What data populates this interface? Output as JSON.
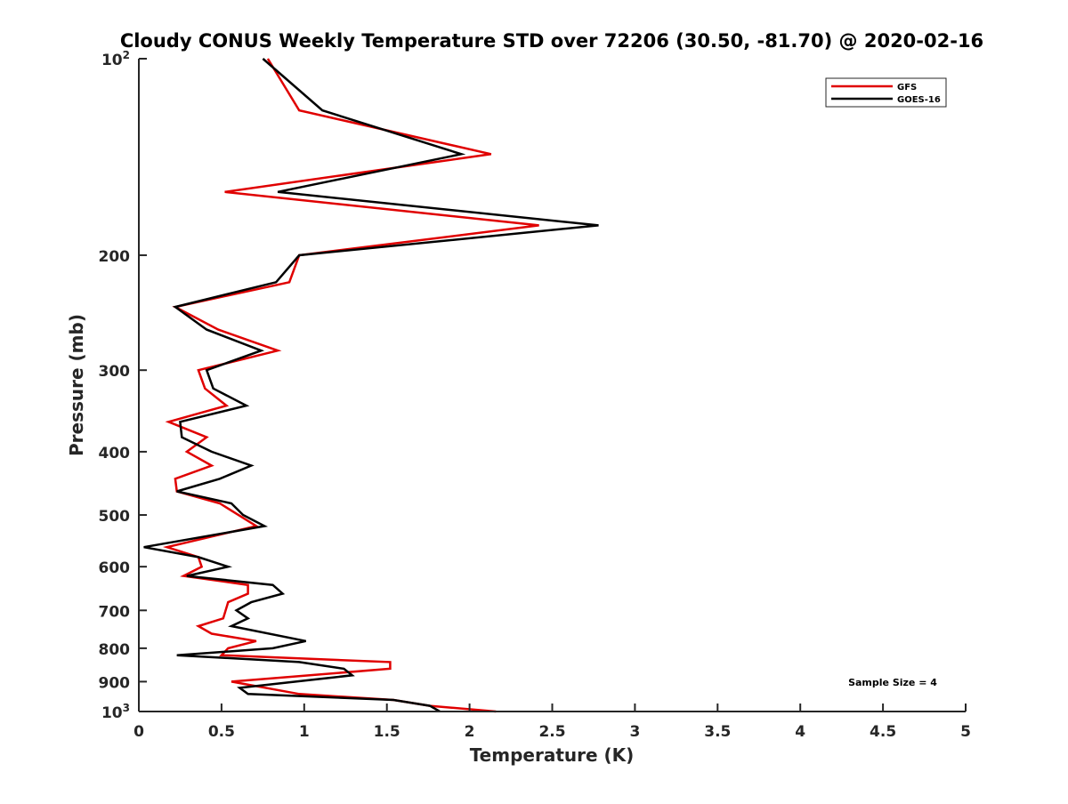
{
  "chart_data": {
    "type": "line",
    "title": "Cloudy CONUS Weekly Temperature STD over 72206 (30.50, -81.70) @ 2020-02-16",
    "xlabel": "Temperature (K)",
    "ylabel": "Pressure (mb)",
    "xlim": [
      0,
      5
    ],
    "ylim": [
      100,
      1000
    ],
    "yscale": "log",
    "yreversed": true,
    "grid": false,
    "legend_position": "top-right",
    "x_ticks": [
      0,
      0.5,
      1,
      1.5,
      2,
      2.5,
      3,
      3.5,
      4,
      4.5,
      5
    ],
    "x_tick_labels": [
      "0",
      "0.5",
      "1",
      "1.5",
      "2",
      "2.5",
      "3",
      "3.5",
      "4",
      "4.5",
      "5"
    ],
    "y_ticks": [
      100,
      200,
      300,
      400,
      500,
      600,
      700,
      800,
      900,
      1000
    ],
    "y_tick_labels": [
      {
        "base": "10",
        "exp": "2"
      },
      {
        "base": "200"
      },
      {
        "base": "300"
      },
      {
        "base": "400"
      },
      {
        "base": "500"
      },
      {
        "base": "600"
      },
      {
        "base": "700"
      },
      {
        "base": "800"
      },
      {
        "base": "900"
      },
      {
        "base": "10",
        "exp": "3"
      }
    ],
    "annotation": "Sample Size = 4",
    "series": [
      {
        "name": "GFS",
        "color": "#e00000",
        "pressure": [
          100,
          120,
          140,
          160,
          180,
          200,
          220,
          240,
          260,
          280,
          300,
          320,
          340,
          360,
          380,
          400,
          420,
          440,
          460,
          480,
          520,
          560,
          580,
          600,
          620,
          640,
          660,
          680,
          720,
          740,
          760,
          780,
          800,
          820,
          840,
          860,
          900,
          940,
          960,
          980,
          1000
        ],
        "temperature": [
          0.78,
          0.97,
          2.13,
          0.52,
          2.42,
          0.97,
          0.91,
          0.22,
          0.48,
          0.84,
          0.36,
          0.4,
          0.53,
          0.18,
          0.41,
          0.29,
          0.44,
          0.22,
          0.23,
          0.49,
          0.71,
          0.17,
          0.36,
          0.38,
          0.27,
          0.66,
          0.66,
          0.54,
          0.51,
          0.36,
          0.44,
          0.71,
          0.54,
          0.5,
          1.52,
          1.52,
          0.56,
          0.97,
          1.54,
          1.76,
          2.16
        ]
      },
      {
        "name": "GOES-16",
        "color": "#000000",
        "pressure": [
          100,
          120,
          140,
          160,
          180,
          200,
          220,
          240,
          260,
          280,
          300,
          320,
          340,
          360,
          380,
          400,
          420,
          440,
          460,
          480,
          500,
          520,
          560,
          580,
          600,
          620,
          640,
          660,
          680,
          700,
          720,
          740,
          780,
          800,
          820,
          840,
          860,
          880,
          920,
          940,
          960,
          980,
          1000
        ],
        "temperature": [
          0.75,
          1.11,
          1.95,
          0.84,
          2.78,
          0.97,
          0.83,
          0.22,
          0.41,
          0.74,
          0.41,
          0.45,
          0.65,
          0.25,
          0.26,
          0.44,
          0.68,
          0.49,
          0.23,
          0.56,
          0.63,
          0.76,
          0.03,
          0.36,
          0.54,
          0.29,
          0.81,
          0.87,
          0.68,
          0.59,
          0.66,
          0.56,
          1.01,
          0.81,
          0.23,
          0.97,
          1.24,
          1.29,
          0.61,
          0.66,
          1.54,
          1.76,
          1.82
        ]
      }
    ]
  }
}
